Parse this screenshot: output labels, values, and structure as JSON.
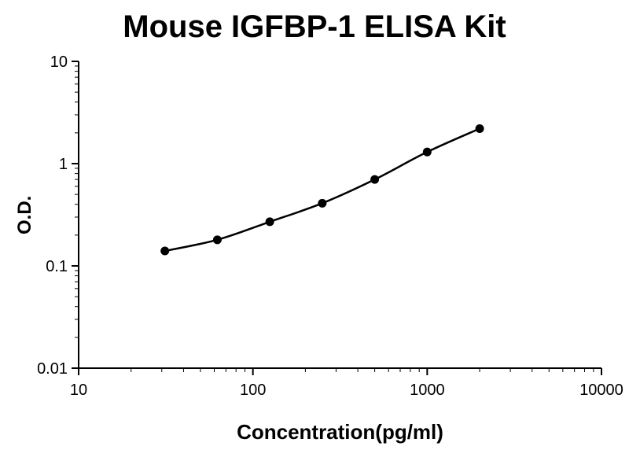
{
  "title": "Mouse IGFBP-1 ELISA Kit",
  "chart_data": {
    "type": "line",
    "title": "Mouse IGFBP-1 ELISA Kit",
    "xlabel": "Concentration(pg/ml)",
    "ylabel": "O.D.",
    "x_scale": "log",
    "y_scale": "log",
    "xlim": [
      10,
      10000
    ],
    "ylim": [
      0.01,
      10
    ],
    "x_ticks": [
      10,
      100,
      1000,
      10000
    ],
    "y_ticks": [
      0.01,
      0.1,
      1,
      10
    ],
    "x": [
      31.25,
      62.5,
      125,
      250,
      500,
      1000,
      2000
    ],
    "y": [
      0.14,
      0.18,
      0.27,
      0.41,
      0.7,
      1.3,
      2.2
    ],
    "line_color": "#000000",
    "marker_color": "#000000",
    "background": "#ffffff",
    "grid": false,
    "legend": "none"
  }
}
